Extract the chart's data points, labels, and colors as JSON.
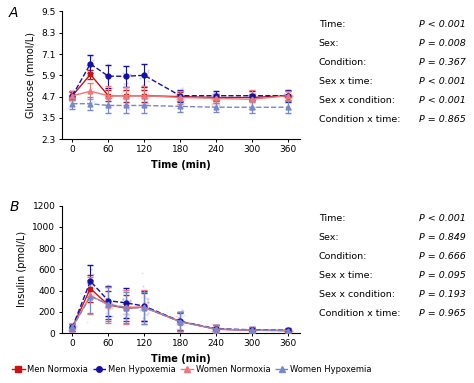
{
  "time_points": [
    0,
    30,
    60,
    90,
    120,
    180,
    240,
    300,
    360
  ],
  "glucose": {
    "men_normoxia_mean": [
      4.75,
      5.95,
      4.75,
      4.75,
      4.75,
      4.7,
      4.65,
      4.65,
      4.75
    ],
    "men_normoxia_err": [
      0.2,
      0.25,
      0.3,
      0.35,
      0.35,
      0.25,
      0.2,
      0.2,
      0.25
    ],
    "men_hypoxemia_mean": [
      4.75,
      6.55,
      5.85,
      5.85,
      5.9,
      4.75,
      4.75,
      4.75,
      4.75
    ],
    "men_hypoxemia_err": [
      0.25,
      0.5,
      0.65,
      0.6,
      0.65,
      0.35,
      0.25,
      0.25,
      0.35
    ],
    "women_normoxia_mean": [
      4.75,
      5.0,
      4.75,
      4.75,
      4.75,
      4.65,
      4.6,
      4.55,
      4.75
    ],
    "women_normoxia_err": [
      0.25,
      0.45,
      0.55,
      0.5,
      0.55,
      0.35,
      0.25,
      0.55,
      0.25
    ],
    "women_hypoxemia_mean": [
      4.3,
      4.3,
      4.2,
      4.2,
      4.2,
      4.15,
      4.1,
      4.1,
      4.1
    ],
    "women_hypoxemia_err": [
      0.3,
      0.35,
      0.4,
      0.4,
      0.4,
      0.3,
      0.25,
      0.3,
      0.35
    ],
    "ylabel": "Glucose (mmol/L)",
    "ylim": [
      2.3,
      9.5
    ],
    "yticks": [
      2.3,
      3.5,
      4.7,
      5.9,
      7.1,
      8.3,
      9.5
    ],
    "stats": [
      [
        "Time:",
        "P < 0.001"
      ],
      [
        "Sex:",
        "P = 0.008"
      ],
      [
        "Condition:",
        "P = 0.367"
      ],
      [
        "Sex x time:",
        "P < 0.001"
      ],
      [
        "Sex x condition:",
        "P < 0.001"
      ],
      [
        "Condition x time:",
        "P = 0.865"
      ]
    ]
  },
  "insulin": {
    "men_normoxia_mean": [
      55,
      420,
      265,
      235,
      245,
      110,
      38,
      28,
      25
    ],
    "men_normoxia_err": [
      30,
      130,
      130,
      120,
      130,
      80,
      38,
      22,
      18
    ],
    "men_hypoxemia_mean": [
      55,
      490,
      305,
      285,
      255,
      112,
      42,
      32,
      28
    ],
    "men_hypoxemia_err": [
      30,
      150,
      140,
      140,
      140,
      90,
      38,
      28,
      18
    ],
    "women_normoxia_mean": [
      55,
      355,
      265,
      245,
      245,
      108,
      38,
      28,
      25
    ],
    "women_normoxia_err": [
      30,
      175,
      165,
      158,
      162,
      88,
      42,
      28,
      18
    ],
    "women_hypoxemia_mean": [
      55,
      345,
      275,
      240,
      240,
      108,
      38,
      28,
      25
    ],
    "women_hypoxemia_err": [
      30,
      158,
      158,
      148,
      152,
      88,
      38,
      28,
      18
    ],
    "ylabel": "Insulin (pmol/L)",
    "ylim": [
      0,
      1200
    ],
    "yticks": [
      0,
      200,
      400,
      600,
      800,
      1000,
      1200
    ],
    "stats": [
      [
        "Time:",
        "P < 0.001"
      ],
      [
        "Sex:",
        "P = 0.849"
      ],
      [
        "Condition:",
        "P = 0.666"
      ],
      [
        "Sex x time:",
        "P = 0.095"
      ],
      [
        "Sex x condition:",
        "P = 0.193"
      ],
      [
        "Condition x time:",
        "P = 0.965"
      ]
    ]
  },
  "colors": {
    "men_normoxia": "#cc1111",
    "men_hypoxemia": "#1111aa",
    "women_normoxia": "#ee7777",
    "women_hypoxemia": "#7788cc"
  },
  "xticks": [
    0,
    60,
    120,
    180,
    240,
    300,
    360
  ],
  "xlabel": "Time (min)",
  "panel_labels": [
    "A",
    "B"
  ],
  "legend_entries": [
    "Men Normoxia",
    "Men Hypoxemia",
    "Women Normoxia",
    "Women Hypoxemia"
  ]
}
